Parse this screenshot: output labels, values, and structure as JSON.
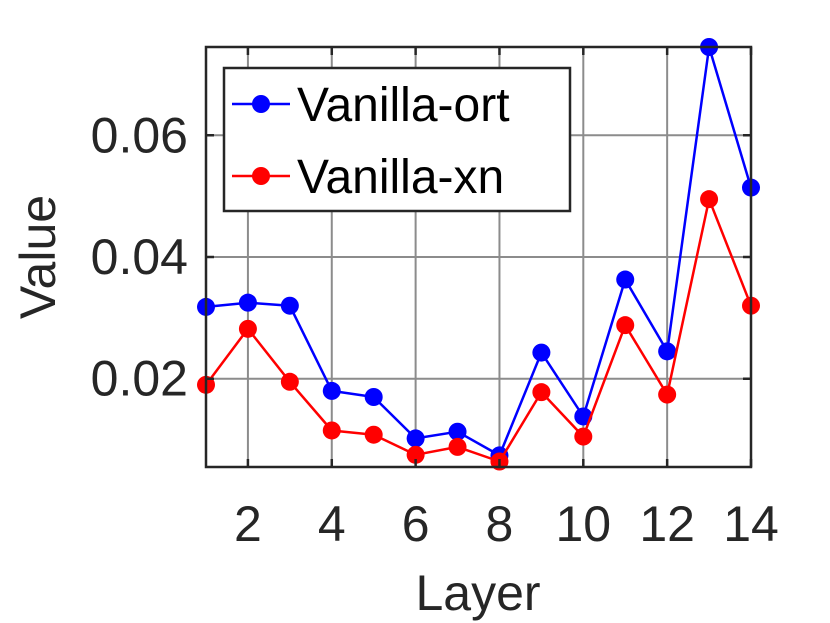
{
  "chart_data": {
    "type": "line",
    "title": "",
    "xlabel": "Layer",
    "ylabel": "Value",
    "x": [
      1,
      2,
      3,
      4,
      5,
      6,
      7,
      8,
      9,
      10,
      11,
      12,
      13,
      14
    ],
    "xlim": [
      1,
      14
    ],
    "ylim": [
      0.0055,
      0.0745
    ],
    "xticks": [
      2,
      4,
      6,
      8,
      10,
      12,
      14
    ],
    "xtick_labels": [
      "2",
      "4",
      "6",
      "8",
      "10",
      "12",
      "14"
    ],
    "yticks": [
      0.02,
      0.04,
      0.06
    ],
    "ytick_labels": [
      "0.02",
      "0.04",
      "0.06"
    ],
    "grid": true,
    "legend_position": "top-left",
    "series": [
      {
        "name": "Vanilla-ort",
        "color": "#0000ff",
        "values": [
          0.0318,
          0.0325,
          0.032,
          0.018,
          0.017,
          0.0102,
          0.0113,
          0.0074,
          0.0243,
          0.0138,
          0.0363,
          0.0245,
          0.0745,
          0.0514
        ]
      },
      {
        "name": "Vanilla-xn",
        "color": "#ff0000",
        "values": [
          0.019,
          0.0282,
          0.0195,
          0.0115,
          0.0108,
          0.0075,
          0.0088,
          0.0064,
          0.0178,
          0.0105,
          0.0288,
          0.0174,
          0.0495,
          0.032
        ]
      }
    ]
  }
}
